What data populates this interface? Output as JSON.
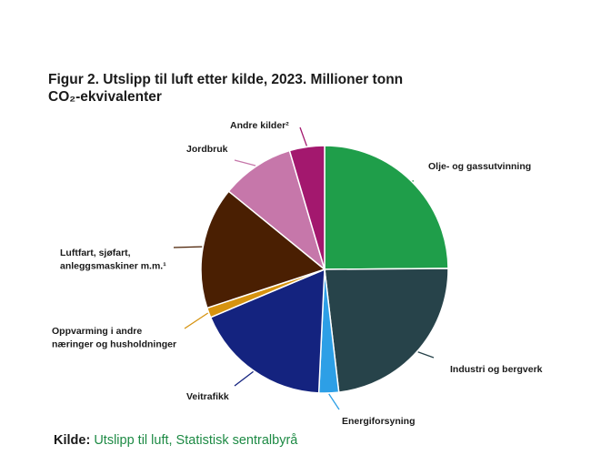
{
  "chart_data": {
    "type": "pie",
    "title_lines": [
      "Figur 2. Utslipp til luft etter kilde, 2023. Millioner tonn",
      "CO₂-ekvivalenter"
    ],
    "start_angle_deg": 0,
    "direction": "clockwise",
    "slices": [
      {
        "label": "Olje- og gassutvinning",
        "value": 25.0,
        "color": "#1f9e4a",
        "label_lines": [
          "Olje- og gassutvinning"
        ]
      },
      {
        "label": "Industri og bergverk",
        "value": 23.4,
        "color": "#27434a",
        "label_lines": [
          "Industri og bergverk"
        ]
      },
      {
        "label": "Energiforsyning",
        "value": 2.6,
        "color": "#2d9fe6",
        "label_lines": [
          "Energiforsyning"
        ]
      },
      {
        "label": "Veitrafikk",
        "value": 18.0,
        "color": "#14237f",
        "label_lines": [
          "Veitrafikk"
        ]
      },
      {
        "label": "Oppvarming i andre næringer og husholdninger",
        "value": 1.3,
        "color": "#d6930f",
        "label_lines": [
          "Oppvarming i andre",
          "næringer og husholdninger"
        ]
      },
      {
        "label": "Luftfart, sjøfart, anleggsmaskiner m.m.¹",
        "value": 16.0,
        "color": "#4a1f02",
        "label_lines": [
          "Luftfart, sjøfart,",
          "anleggsmaskiner m.m.¹"
        ]
      },
      {
        "label": "Jordbruk",
        "value": 9.6,
        "color": "#c677aa",
        "label_lines": [
          "Jordbruk"
        ]
      },
      {
        "label": "Andre kilder²",
        "value": 4.6,
        "color": "#a3186e",
        "label_lines": [
          "Andre kilder²"
        ]
      }
    ]
  },
  "source": {
    "prefix": "Kilde:",
    "text": "Utslipp til luft, Statistisk sentralbyrå"
  }
}
